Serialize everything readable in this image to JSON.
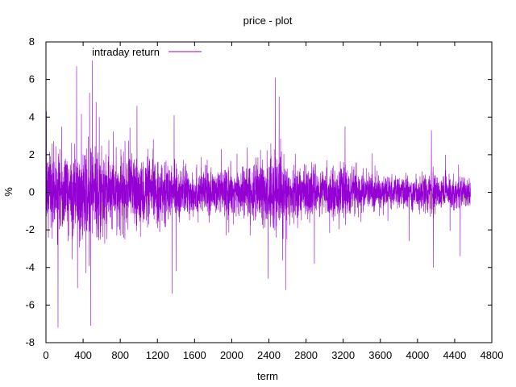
{
  "chart_data": {
    "type": "line",
    "title": "price - plot",
    "xlabel": "term",
    "ylabel": "%",
    "xlim": [
      0,
      4800
    ],
    "ylim": [
      -8,
      8
    ],
    "xticks": [
      0,
      400,
      800,
      1200,
      1600,
      2000,
      2400,
      2800,
      3200,
      3600,
      4000,
      4400,
      4800
    ],
    "yticks": [
      -8,
      -6,
      -4,
      -2,
      0,
      2,
      4,
      6,
      8
    ],
    "grid": false,
    "legend_position": "top-left",
    "series": [
      {
        "name": "intraday return",
        "color": "#9400d3",
        "x_start": 0,
        "x_end": 4570,
        "volatility_profile": [
          [
            0,
            1.6
          ],
          [
            150,
            1.3
          ],
          [
            300,
            1.5
          ],
          [
            500,
            1.7
          ],
          [
            700,
            1.3
          ],
          [
            1000,
            1.2
          ],
          [
            1300,
            1.0
          ],
          [
            1600,
            0.8
          ],
          [
            1900,
            0.75
          ],
          [
            2200,
            0.9
          ],
          [
            2450,
            1.4
          ],
          [
            2600,
            1.0
          ],
          [
            2900,
            0.75
          ],
          [
            3200,
            0.85
          ],
          [
            3500,
            0.65
          ],
          [
            3800,
            0.5
          ],
          [
            4100,
            0.65
          ],
          [
            4400,
            0.55
          ],
          [
            4570,
            0.45
          ]
        ],
        "notable_points": [
          [
            5,
            4.3
          ],
          [
            130,
            -7.2
          ],
          [
            170,
            3.5
          ],
          [
            330,
            6.7
          ],
          [
            340,
            -5.1
          ],
          [
            430,
            -4.3
          ],
          [
            470,
            5.3
          ],
          [
            480,
            -7.1
          ],
          [
            500,
            7.0
          ],
          [
            540,
            4.8
          ],
          [
            980,
            4.6
          ],
          [
            1360,
            -5.4
          ],
          [
            1380,
            4.1
          ],
          [
            1400,
            -4.2
          ],
          [
            2390,
            -4.6
          ],
          [
            2470,
            6.1
          ],
          [
            2510,
            5.1
          ],
          [
            2580,
            -5.2
          ],
          [
            2890,
            -3.8
          ],
          [
            3220,
            3.5
          ],
          [
            3910,
            -2.6
          ],
          [
            4150,
            3.3
          ],
          [
            4170,
            -4.0
          ],
          [
            4300,
            2.0
          ],
          [
            4460,
            -3.4
          ]
        ]
      }
    ]
  }
}
